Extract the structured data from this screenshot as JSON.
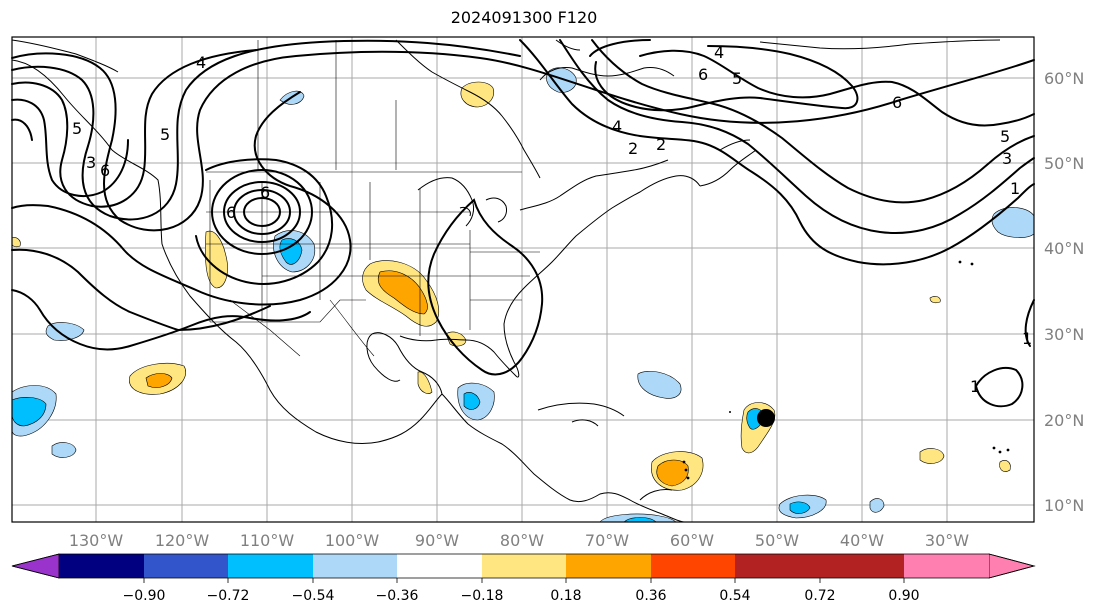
{
  "title": "2024091300 F120",
  "longitude_labels": [
    "130°W",
    "120°W",
    "110°W",
    "100°W",
    "90°W",
    "80°W",
    "70°W",
    "60°W",
    "50°W",
    "40°W",
    "30°W"
  ],
  "latitude_labels": [
    "60°N",
    "50°N",
    "40°N",
    "30°N",
    "20°N",
    "10°N"
  ],
  "contour_labels": [
    "4",
    "5",
    "6",
    "4",
    "5",
    "6",
    "2",
    "3",
    "4",
    "3",
    "5",
    "6",
    "1",
    "6",
    "6",
    "1",
    "1",
    "2",
    "5"
  ],
  "colorbar": {
    "colors": [
      "#9933cc",
      "#000080",
      "#3355cc",
      "#00bfff",
      "#add8f7",
      "#ffffff",
      "#ffe680",
      "#ffa500",
      "#ff4500",
      "#b22222",
      "#ff80b0"
    ],
    "tick_labels": [
      "−0.90",
      "−0.72",
      "−0.54",
      "−0.36",
      "−0.18",
      "0.18",
      "0.36",
      "0.54",
      "0.72",
      "0.90"
    ]
  },
  "colors": {
    "contour": "#000000",
    "grid": "#a0a0a0",
    "coast": "#000000",
    "axis_label": "#808080"
  }
}
